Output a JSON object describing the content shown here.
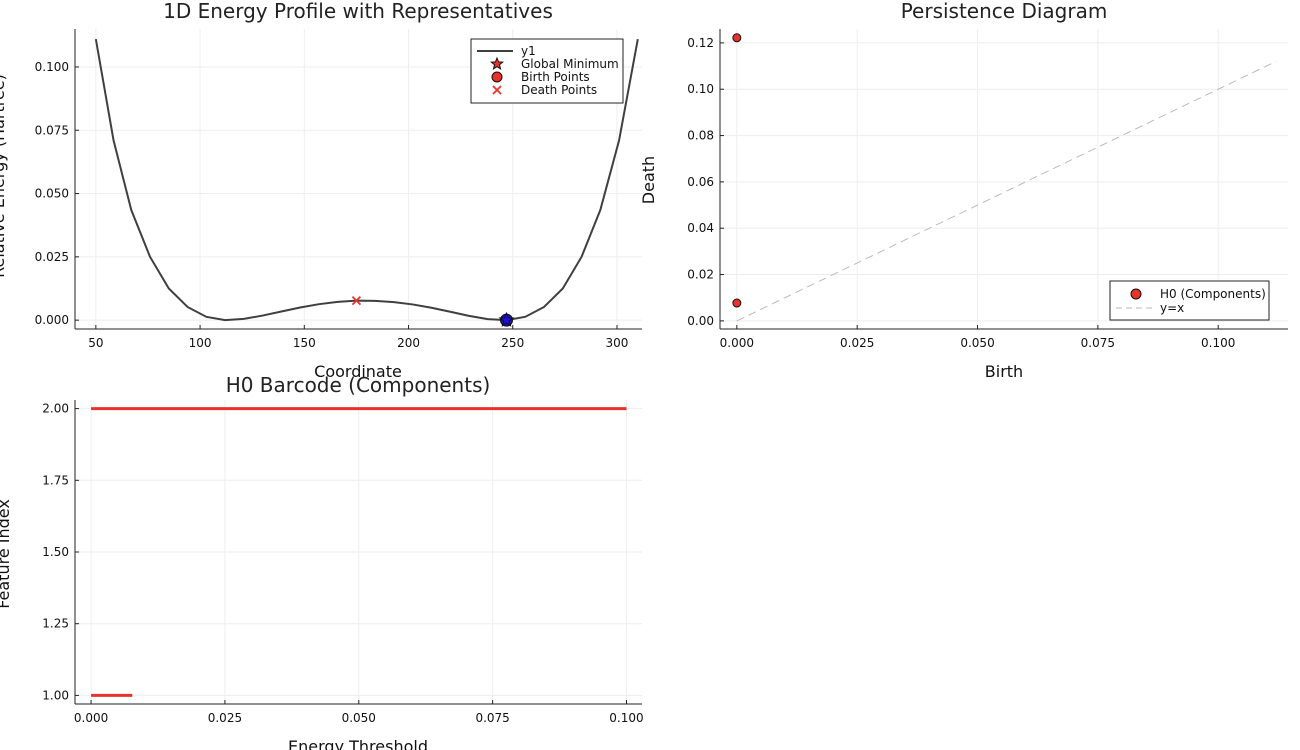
{
  "chart_data": [
    {
      "type": "line",
      "title": "1D Energy Profile with Representatives",
      "xlabel": "Coordinate",
      "ylabel": "Relative Energy (Hartree)",
      "xlim": [
        40,
        312
      ],
      "ylim": [
        -0.0035,
        0.115
      ],
      "xticks": [
        50,
        100,
        150,
        200,
        250,
        300
      ],
      "xtick_labels": [
        "50",
        "100",
        "150",
        "200",
        "250",
        "300"
      ],
      "yticks": [
        0,
        0.025,
        0.05,
        0.075,
        0.1
      ],
      "ytick_labels": [
        "0.000",
        "0.025",
        "0.050",
        "0.075",
        "0.100"
      ],
      "grid": true,
      "legend_position": "top-right",
      "series": [
        {
          "name": "y1",
          "kind": "line",
          "color": "#3f3f3f",
          "x": [
            50,
            58.5,
            67,
            76,
            85,
            94,
            103,
            112,
            121,
            130,
            139,
            148,
            157,
            166,
            175,
            184,
            193,
            202,
            211,
            220,
            229,
            238,
            247,
            256,
            265,
            274,
            283,
            292,
            301,
            310
          ],
          "y": [
            0.111,
            0.071,
            0.0435,
            0.025,
            0.0125,
            0.0052,
            0.0013,
            0.0,
            0.0005,
            0.0018,
            0.0034,
            0.005,
            0.0063,
            0.0072,
            0.0077,
            0.0076,
            0.0071,
            0.0062,
            0.0049,
            0.0033,
            0.0017,
            0.0004,
            0.0,
            0.0013,
            0.0052,
            0.0125,
            0.025,
            0.0435,
            0.071,
            0.111
          ]
        },
        {
          "name": "Global Minimum",
          "kind": "star",
          "color": "#e8322b",
          "x": [
            247
          ],
          "y": [
            0.0
          ]
        },
        {
          "name": "Birth Points",
          "kind": "circle",
          "color": "#e8322b",
          "x": [
            247
          ],
          "y": [
            0.0
          ]
        },
        {
          "name": "Death Points",
          "kind": "cross",
          "color": "#e8322b",
          "x": [
            175
          ],
          "y": [
            0.0077
          ]
        }
      ],
      "highlight_marker_color": "#1f10d6"
    },
    {
      "type": "scatter",
      "title": "Persistence Diagram",
      "xlabel": "Birth",
      "ylabel": "Death",
      "xlim": [
        -0.0035,
        0.1145
      ],
      "ylim": [
        -0.0035,
        0.126
      ],
      "xticks": [
        0,
        0.025,
        0.05,
        0.075,
        0.1
      ],
      "xtick_labels": [
        "0.000",
        "0.025",
        "0.050",
        "0.075",
        "0.100"
      ],
      "yticks": [
        0,
        0.02,
        0.04,
        0.06,
        0.08,
        0.1,
        0.12
      ],
      "ytick_labels": [
        "0.00",
        "0.02",
        "0.04",
        "0.06",
        "0.08",
        "0.10",
        "0.12"
      ],
      "grid": true,
      "legend_position": "bottom-right",
      "series": [
        {
          "name": "H0 (Components)",
          "kind": "circle",
          "color": "#e8322b",
          "x": [
            0.0,
            0.0
          ],
          "y": [
            0.1222,
            0.0077
          ]
        },
        {
          "name": "y=x",
          "kind": "dashed-line",
          "color": "#bbbbbb",
          "x": [
            0.0,
            0.112
          ],
          "y": [
            0.0,
            0.112
          ]
        }
      ]
    },
    {
      "type": "bar",
      "title": "H0 Barcode (Components)",
      "xlabel": "Energy Threshold",
      "ylabel": "Feature Index",
      "xlim": [
        -0.003,
        0.1029
      ],
      "ylim": [
        0.97,
        2.03
      ],
      "xticks": [
        0,
        0.025,
        0.05,
        0.075,
        0.1
      ],
      "xtick_labels": [
        "0.000",
        "0.025",
        "0.050",
        "0.075",
        "0.100"
      ],
      "yticks": [
        1.0,
        1.25,
        1.5,
        1.75,
        2.0
      ],
      "ytick_labels": [
        "1.00",
        "1.25",
        "1.50",
        "1.75",
        "2.00"
      ],
      "grid": true,
      "bars": [
        {
          "index": 1,
          "start": 0.0,
          "end": 0.0077,
          "color": "#e8322b"
        },
        {
          "index": 2,
          "start": 0.0,
          "end": 0.1,
          "color": "#e8322b"
        }
      ]
    }
  ]
}
